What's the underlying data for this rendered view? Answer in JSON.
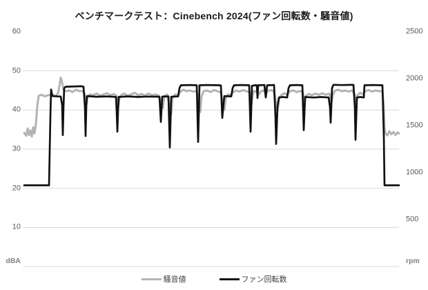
{
  "title": "ベンチマークテスト：Cinebench 2024(ファン回転数・騒音値)",
  "left_axis": {
    "unit": "dBA",
    "ticks": [
      60,
      50,
      40,
      30,
      20,
      10
    ],
    "range": [
      0,
      60
    ]
  },
  "right_axis": {
    "unit": "rpm",
    "ticks": [
      2500,
      2000,
      1500,
      1000,
      500
    ],
    "range": [
      0,
      2500
    ]
  },
  "gridline_values": [
    50,
    40,
    30,
    20,
    10,
    0
  ],
  "colors": {
    "noise_line": "#b3b3b3",
    "fan_line": "#111111",
    "gridline": "#d9d9d9",
    "axis_text": "#595959"
  },
  "legend": {
    "noise": {
      "label": "騒音値",
      "color": "#b3b3b3"
    },
    "fan": {
      "label": "ファン回転数",
      "color": "#111111"
    }
  },
  "chart_data": {
    "type": "line",
    "title": "ベンチマークテスト：Cinebench 2024(ファン回転数・騒音値)",
    "grid": true,
    "legend_position": "bottom",
    "left_ylim": [
      0,
      60
    ],
    "right_ylim": [
      0,
      2500
    ],
    "x_axis": {
      "label": "",
      "tick_labels_visible": false
    },
    "series": [
      {
        "name": "騒音値",
        "axis": "left",
        "unit": "dBA",
        "color": "#b3b3b3",
        "points": [
          [
            35,
            34.2
          ],
          [
            38,
            33.4
          ],
          [
            40,
            35.3
          ],
          [
            42,
            33.6
          ],
          [
            44,
            34.8
          ],
          [
            46,
            33.2
          ],
          [
            48,
            35.6
          ],
          [
            50,
            34.0
          ],
          [
            52,
            36.5
          ],
          [
            54,
            41.0
          ],
          [
            56,
            43.6
          ],
          [
            60,
            43.9
          ],
          [
            65,
            43.5
          ],
          [
            70,
            43.8
          ],
          [
            75,
            44.0
          ],
          [
            80,
            43.6
          ],
          [
            84,
            44.2
          ],
          [
            86,
            46.0
          ],
          [
            88,
            48.3
          ],
          [
            90,
            47.0
          ],
          [
            92,
            45.2
          ],
          [
            95,
            44.8
          ],
          [
            100,
            45.0
          ],
          [
            105,
            44.6
          ],
          [
            110,
            45.2
          ],
          [
            115,
            44.8
          ],
          [
            120,
            44.9
          ],
          [
            123,
            44.0
          ],
          [
            125,
            41.5
          ],
          [
            127,
            43.4
          ],
          [
            130,
            44.0
          ],
          [
            135,
            43.8
          ],
          [
            140,
            44.2
          ],
          [
            145,
            43.7
          ],
          [
            150,
            44.0
          ],
          [
            155,
            44.3
          ],
          [
            160,
            43.8
          ],
          [
            165,
            44.1
          ],
          [
            169,
            43.6
          ],
          [
            171,
            40.8
          ],
          [
            173,
            43.0
          ],
          [
            176,
            43.9
          ],
          [
            180,
            44.2
          ],
          [
            185,
            43.7
          ],
          [
            190,
            44.0
          ],
          [
            195,
            44.4
          ],
          [
            200,
            43.8
          ],
          [
            205,
            44.1
          ],
          [
            210,
            43.7
          ],
          [
            215,
            44.2
          ],
          [
            220,
            43.8
          ],
          [
            225,
            44.0
          ],
          [
            230,
            43.7
          ],
          [
            233,
            42.0
          ],
          [
            236,
            40.5
          ],
          [
            238,
            43.5
          ],
          [
            242,
            44.0
          ],
          [
            246,
            41.0
          ],
          [
            248,
            38.8
          ],
          [
            250,
            43.2
          ],
          [
            254,
            44.0
          ],
          [
            258,
            43.8
          ],
          [
            262,
            44.8
          ],
          [
            266,
            45.2
          ],
          [
            270,
            44.8
          ],
          [
            275,
            45.0
          ],
          [
            280,
            44.7
          ],
          [
            285,
            44.9
          ],
          [
            288,
            41.8
          ],
          [
            290,
            39.5
          ],
          [
            292,
            43.5
          ],
          [
            295,
            44.8
          ],
          [
            300,
            45.0
          ],
          [
            305,
            44.6
          ],
          [
            310,
            45.1
          ],
          [
            315,
            44.8
          ],
          [
            320,
            44.5
          ],
          [
            323,
            41.5
          ],
          [
            325,
            40.0
          ],
          [
            327,
            43.0
          ],
          [
            330,
            44.0
          ],
          [
            334,
            43.8
          ],
          [
            338,
            44.6
          ],
          [
            342,
            45.0
          ],
          [
            347,
            44.7
          ],
          [
            352,
            45.1
          ],
          [
            357,
            44.8
          ],
          [
            362,
            44.5
          ],
          [
            364,
            41.0
          ],
          [
            366,
            43.8
          ],
          [
            368,
            44.9
          ],
          [
            372,
            44.6
          ],
          [
            375,
            44.0
          ],
          [
            378,
            44.8
          ],
          [
            382,
            45.0
          ],
          [
            385,
            44.2
          ],
          [
            388,
            44.9
          ],
          [
            393,
            45.1
          ],
          [
            397,
            44.7
          ],
          [
            400,
            42.0
          ],
          [
            402,
            39.8
          ],
          [
            405,
            43.2
          ],
          [
            408,
            43.9
          ],
          [
            412,
            44.3
          ],
          [
            416,
            43.9
          ],
          [
            420,
            44.8
          ],
          [
            425,
            45.0
          ],
          [
            430,
            44.6
          ],
          [
            435,
            44.9
          ],
          [
            439,
            44.4
          ],
          [
            441,
            41.2
          ],
          [
            443,
            43.6
          ],
          [
            447,
            44.1
          ],
          [
            452,
            43.8
          ],
          [
            457,
            44.2
          ],
          [
            462,
            43.9
          ],
          [
            467,
            44.3
          ],
          [
            472,
            43.9
          ],
          [
            477,
            44.2
          ],
          [
            480,
            41.8
          ],
          [
            482,
            43.8
          ],
          [
            485,
            44.9
          ],
          [
            490,
            45.2
          ],
          [
            495,
            44.8
          ],
          [
            500,
            45.0
          ],
          [
            505,
            44.7
          ],
          [
            510,
            45.0
          ],
          [
            514,
            44.0
          ],
          [
            516,
            41.5
          ],
          [
            518,
            43.8
          ],
          [
            522,
            44.4
          ],
          [
            526,
            44.0
          ],
          [
            529,
            44.8
          ],
          [
            534,
            45.1
          ],
          [
            539,
            44.7
          ],
          [
            544,
            45.0
          ],
          [
            549,
            44.8
          ],
          [
            554,
            44.9
          ],
          [
            556,
            41.0
          ],
          [
            557,
            35.5
          ],
          [
            558,
            34.2
          ],
          [
            561,
            33.5
          ],
          [
            564,
            34.6
          ],
          [
            567,
            33.8
          ],
          [
            570,
            34.4
          ],
          [
            573,
            33.6
          ],
          [
            576,
            34.3
          ],
          [
            578,
            34.0
          ]
        ]
      },
      {
        "name": "ファン回転数",
        "axis": "right",
        "unit": "rpm",
        "color": "#111111",
        "points": [
          [
            35,
            865
          ],
          [
            71,
            865
          ],
          [
            73,
            1600
          ],
          [
            74,
            1885
          ],
          [
            76,
            1815
          ],
          [
            88,
            1810
          ],
          [
            90,
            1720
          ],
          [
            91,
            1400
          ],
          [
            92,
            1700
          ],
          [
            93,
            1900
          ],
          [
            95,
            1915
          ],
          [
            118,
            1920
          ],
          [
            121,
            1915
          ],
          [
            123,
            1700
          ],
          [
            124,
            1390
          ],
          [
            125,
            1700
          ],
          [
            126,
            1815
          ],
          [
            140,
            1808
          ],
          [
            155,
            1812
          ],
          [
            168,
            1806
          ],
          [
            169,
            1650
          ],
          [
            170,
            1437
          ],
          [
            171,
            1650
          ],
          [
            172,
            1806
          ],
          [
            185,
            1812
          ],
          [
            200,
            1806
          ],
          [
            215,
            1810
          ],
          [
            231,
            1808
          ],
          [
            233,
            1540
          ],
          [
            235,
            1810
          ],
          [
            244,
            1812
          ],
          [
            246,
            1268
          ],
          [
            248,
            1808
          ],
          [
            258,
            1812
          ],
          [
            260,
            1900
          ],
          [
            262,
            1930
          ],
          [
            275,
            1933
          ],
          [
            285,
            1930
          ],
          [
            287,
            1327
          ],
          [
            289,
            1930
          ],
          [
            300,
            1933
          ],
          [
            318,
            1930
          ],
          [
            320,
            1928
          ],
          [
            322,
            1583
          ],
          [
            324,
            1750
          ],
          [
            325,
            1815
          ],
          [
            335,
            1812
          ],
          [
            337,
            1900
          ],
          [
            339,
            1930
          ],
          [
            350,
            1933
          ],
          [
            361,
            1930
          ],
          [
            363,
            1437
          ],
          [
            365,
            1925
          ],
          [
            370,
            1930
          ],
          [
            372,
            1930
          ],
          [
            373,
            1795
          ],
          [
            374,
            1930
          ],
          [
            383,
            1933
          ],
          [
            385,
            1800
          ],
          [
            387,
            1930
          ],
          [
            397,
            1933
          ],
          [
            399,
            1600
          ],
          [
            400,
            1305
          ],
          [
            402,
            1700
          ],
          [
            404,
            1800
          ],
          [
            410,
            1805
          ],
          [
            416,
            1800
          ],
          [
            418,
            1900
          ],
          [
            420,
            1930
          ],
          [
            430,
            1933
          ],
          [
            438,
            1930
          ],
          [
            440,
            1452
          ],
          [
            442,
            1805
          ],
          [
            455,
            1800
          ],
          [
            465,
            1805
          ],
          [
            476,
            1800
          ],
          [
            478,
            1700
          ],
          [
            479,
            1532
          ],
          [
            481,
            1900
          ],
          [
            483,
            1935
          ],
          [
            495,
            1932
          ],
          [
            512,
            1935
          ],
          [
            514,
            1700
          ],
          [
            515,
            1349
          ],
          [
            517,
            1800
          ],
          [
            522,
            1805
          ],
          [
            527,
            1800
          ],
          [
            528,
            1930
          ],
          [
            540,
            1933
          ],
          [
            554,
            1930
          ],
          [
            556,
            1400
          ],
          [
            557,
            865
          ],
          [
            578,
            865
          ]
        ]
      }
    ]
  }
}
